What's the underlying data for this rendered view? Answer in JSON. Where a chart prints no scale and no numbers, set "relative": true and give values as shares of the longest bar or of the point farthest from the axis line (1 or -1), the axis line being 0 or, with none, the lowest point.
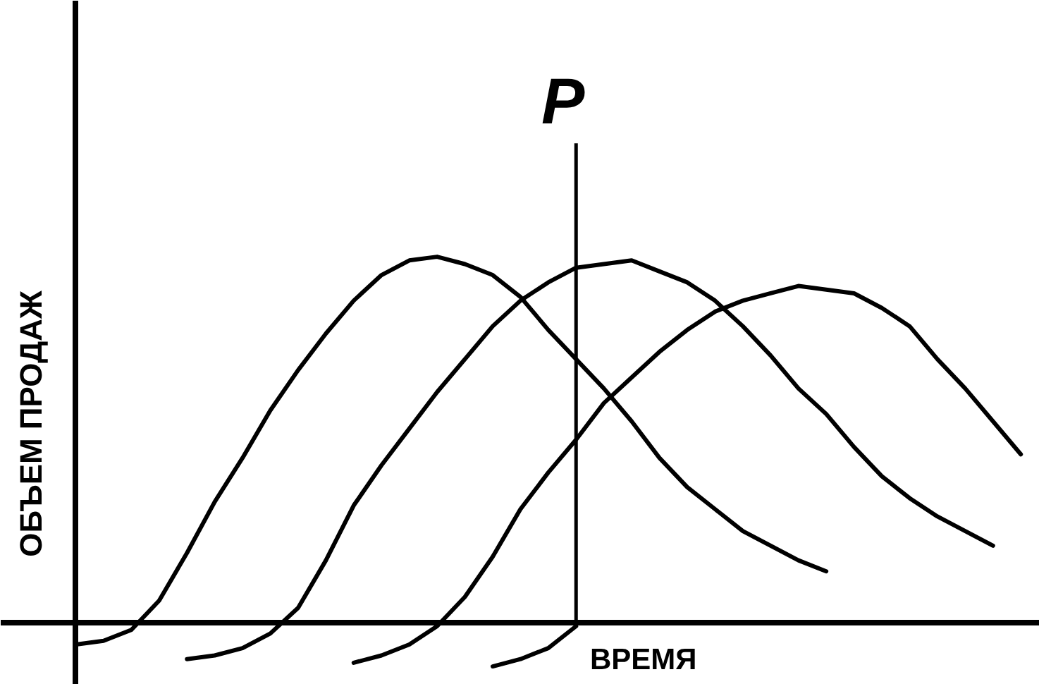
{
  "chart_data": {
    "type": "line",
    "relative": true,
    "xlabel": "ВРЕМЯ",
    "ylabel": "ОБЪЕМ ПРОДАЖ",
    "line_style": "solid",
    "annotations": [
      "P"
    ],
    "categories": [
      null,
      null,
      null,
      null,
      null,
      null,
      null,
      null,
      null,
      null,
      null,
      null,
      null,
      null,
      null,
      null,
      null,
      null,
      null,
      null,
      null,
      null,
      null,
      null,
      null,
      null,
      null,
      null,
      null,
      null,
      null,
      null,
      null,
      null,
      null
    ],
    "series": [
      {
        "color": "#000000",
        "values": [
          -0.06,
          -0.05,
          -0.02,
          0.06,
          0.19,
          0.33,
          0.45,
          0.58,
          0.69,
          0.79,
          0.88,
          0.95,
          0.99,
          1.0,
          0.98,
          0.95,
          0.89,
          0.8,
          0.72,
          0.64,
          0.55,
          0.45,
          0.37,
          0.31,
          0.25,
          0.21,
          0.17,
          0.14,
          null,
          null,
          null,
          null,
          null,
          null,
          null
        ]
      },
      {
        "color": "#000000",
        "values": [
          null,
          null,
          null,
          null,
          -0.1,
          -0.09,
          -0.07,
          -0.03,
          0.04,
          0.17,
          0.32,
          0.43,
          0.53,
          0.63,
          0.72,
          0.81,
          0.88,
          0.93,
          0.97,
          0.98,
          0.99,
          0.96,
          0.93,
          0.88,
          0.81,
          0.73,
          0.64,
          0.57,
          0.48,
          0.4,
          0.34,
          0.29,
          0.25,
          0.21,
          null
        ]
      },
      {
        "color": "#000000",
        "values": [
          null,
          null,
          null,
          null,
          null,
          null,
          null,
          null,
          null,
          null,
          -0.11,
          -0.09,
          -0.06,
          -0.01,
          0.07,
          0.18,
          0.31,
          0.41,
          0.5,
          0.6,
          0.67,
          0.74,
          0.8,
          0.85,
          0.88,
          0.9,
          0.92,
          0.91,
          0.9,
          0.86,
          0.81,
          0.72,
          0.64,
          0.55,
          0.46
        ]
      },
      {
        "color": "#000000",
        "values": [
          null,
          null,
          null,
          null,
          null,
          null,
          null,
          null,
          null,
          null,
          null,
          null,
          null,
          null,
          null,
          -0.12,
          -0.1,
          -0.07,
          -0.01,
          null,
          null,
          null,
          null,
          null,
          null,
          null,
          null,
          null,
          null,
          null,
          null,
          null,
          null,
          null,
          null
        ]
      }
    ]
  }
}
